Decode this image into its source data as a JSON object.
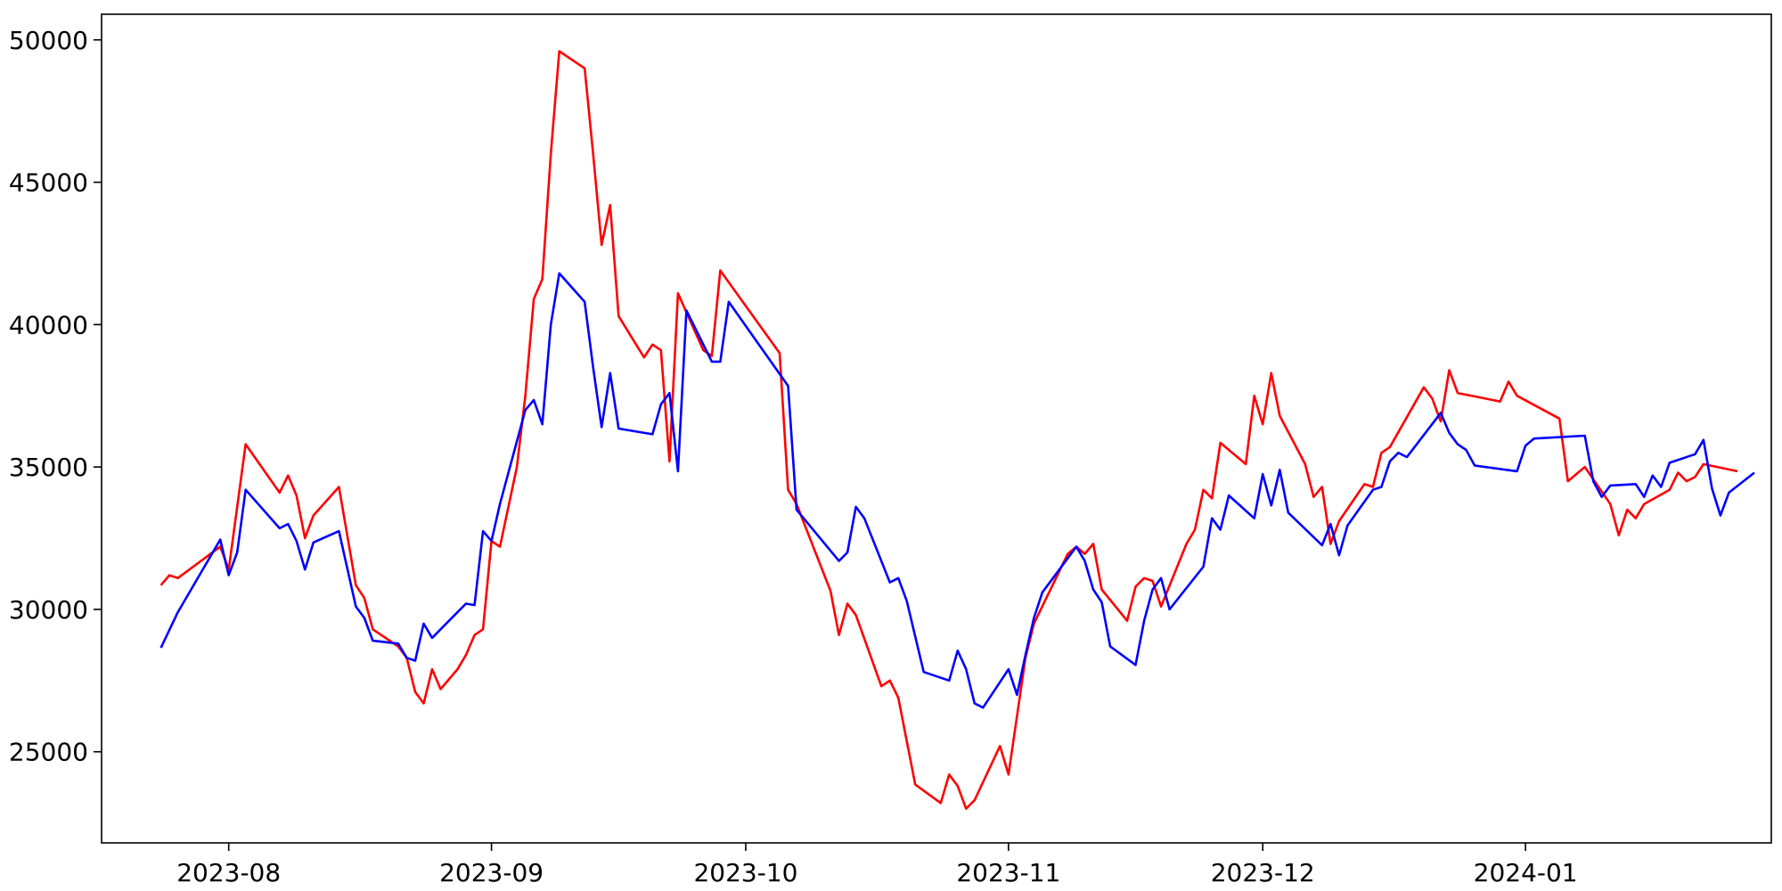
{
  "chart_data": {
    "type": "line",
    "title": "",
    "xlabel": "",
    "ylabel": "",
    "grid": false,
    "x_ticks": [
      "2023-08",
      "2023-09",
      "2023-10",
      "2023-11",
      "2023-12",
      "2024-01"
    ],
    "y_ticks": [
      25000,
      30000,
      35000,
      40000,
      45000,
      50000
    ],
    "xlim": [
      "2023-07-17",
      "2024-01-30"
    ],
    "ylim": [
      21800,
      50900
    ],
    "series": [
      {
        "color": "#ff0000",
        "points": [
          [
            "2023-07-24",
            30850
          ],
          [
            "2023-07-25",
            31200
          ],
          [
            "2023-07-26",
            31100
          ],
          [
            "2023-07-31",
            32200
          ],
          [
            "2023-08-01",
            31400
          ],
          [
            "2023-08-03",
            35800
          ],
          [
            "2023-08-07",
            34100
          ],
          [
            "2023-08-08",
            34700
          ],
          [
            "2023-08-09",
            34000
          ],
          [
            "2023-08-10",
            32500
          ],
          [
            "2023-08-11",
            33300
          ],
          [
            "2023-08-14",
            34300
          ],
          [
            "2023-08-16",
            30850
          ],
          [
            "2023-08-17",
            30400
          ],
          [
            "2023-08-18",
            29300
          ],
          [
            "2023-08-21",
            28700
          ],
          [
            "2023-08-22",
            28300
          ],
          [
            "2023-08-23",
            27100
          ],
          [
            "2023-08-24",
            26700
          ],
          [
            "2023-08-25",
            27900
          ],
          [
            "2023-08-26",
            27200
          ],
          [
            "2023-08-28",
            27900
          ],
          [
            "2023-08-29",
            28400
          ],
          [
            "2023-08-30",
            29100
          ],
          [
            "2023-08-31",
            29300
          ],
          [
            "2023-09-01",
            32400
          ],
          [
            "2023-09-02",
            32200
          ],
          [
            "2023-09-04",
            35000
          ],
          [
            "2023-09-05",
            37500
          ],
          [
            "2023-09-06",
            40900
          ],
          [
            "2023-09-07",
            41600
          ],
          [
            "2023-09-08",
            46000
          ],
          [
            "2023-09-09",
            49600
          ],
          [
            "2023-09-12",
            49000
          ],
          [
            "2023-09-13",
            46000
          ],
          [
            "2023-09-14",
            42800
          ],
          [
            "2023-09-15",
            44200
          ],
          [
            "2023-09-16",
            40300
          ],
          [
            "2023-09-19",
            38850
          ],
          [
            "2023-09-20",
            39300
          ],
          [
            "2023-09-21",
            39100
          ],
          [
            "2023-09-22",
            35200
          ],
          [
            "2023-09-23",
            41100
          ],
          [
            "2023-09-26",
            39100
          ],
          [
            "2023-09-27",
            38900
          ],
          [
            "2023-09-28",
            41900
          ],
          [
            "2023-10-05",
            39000
          ],
          [
            "2023-10-06",
            34200
          ],
          [
            "2023-10-07",
            33700
          ],
          [
            "2023-10-11",
            30650
          ],
          [
            "2023-10-12",
            29100
          ],
          [
            "2023-10-13",
            30200
          ],
          [
            "2023-10-14",
            29800
          ],
          [
            "2023-10-17",
            27300
          ],
          [
            "2023-10-18",
            27500
          ],
          [
            "2023-10-19",
            26900
          ],
          [
            "2023-10-21",
            23850
          ],
          [
            "2023-10-24",
            23200
          ],
          [
            "2023-10-25",
            24200
          ],
          [
            "2023-10-26",
            23800
          ],
          [
            "2023-10-27",
            23000
          ],
          [
            "2023-10-28",
            23300
          ],
          [
            "2023-10-31",
            25200
          ],
          [
            "2023-11-01",
            24200
          ],
          [
            "2023-11-03",
            28300
          ],
          [
            "2023-11-04",
            29500
          ],
          [
            "2023-11-08",
            31950
          ],
          [
            "2023-11-09",
            32200
          ],
          [
            "2023-11-10",
            31950
          ],
          [
            "2023-11-11",
            32300
          ],
          [
            "2023-11-12",
            30700
          ],
          [
            "2023-11-15",
            29600
          ],
          [
            "2023-11-16",
            30800
          ],
          [
            "2023-11-17",
            31100
          ],
          [
            "2023-11-18",
            31000
          ],
          [
            "2023-11-19",
            30100
          ],
          [
            "2023-11-22",
            32300
          ],
          [
            "2023-11-23",
            32800
          ],
          [
            "2023-11-24",
            34200
          ],
          [
            "2023-11-25",
            33900
          ],
          [
            "2023-11-26",
            35850
          ],
          [
            "2023-11-29",
            35100
          ],
          [
            "2023-11-30",
            37500
          ],
          [
            "2023-12-01",
            36500
          ],
          [
            "2023-12-02",
            38300
          ],
          [
            "2023-12-03",
            36800
          ],
          [
            "2023-12-06",
            35100
          ],
          [
            "2023-12-07",
            33950
          ],
          [
            "2023-12-08",
            34300
          ],
          [
            "2023-12-09",
            32300
          ],
          [
            "2023-12-10",
            33100
          ],
          [
            "2023-12-13",
            34400
          ],
          [
            "2023-12-14",
            34300
          ],
          [
            "2023-12-15",
            35500
          ],
          [
            "2023-12-16",
            35700
          ],
          [
            "2023-12-20",
            37800
          ],
          [
            "2023-12-21",
            37400
          ],
          [
            "2023-12-22",
            36600
          ],
          [
            "2023-12-23",
            38400
          ],
          [
            "2023-12-24",
            37600
          ],
          [
            "2023-12-29",
            37300
          ],
          [
            "2023-12-30",
            38000
          ],
          [
            "2023-12-31",
            37500
          ],
          [
            "2024-01-05",
            36700
          ],
          [
            "2024-01-06",
            34500
          ],
          [
            "2024-01-08",
            35000
          ],
          [
            "2024-01-11",
            33700
          ],
          [
            "2024-01-12",
            32600
          ],
          [
            "2024-01-13",
            33500
          ],
          [
            "2024-01-14",
            33200
          ],
          [
            "2024-01-15",
            33700
          ],
          [
            "2024-01-18",
            34200
          ],
          [
            "2024-01-19",
            34800
          ],
          [
            "2024-01-20",
            34500
          ],
          [
            "2024-01-21",
            34650
          ],
          [
            "2024-01-22",
            35100
          ],
          [
            "2024-01-26",
            34850
          ]
        ]
      },
      {
        "color": "#0000ff",
        "points": [
          [
            "2023-07-24",
            28650
          ],
          [
            "2023-07-26",
            29900
          ],
          [
            "2023-07-31",
            32450
          ],
          [
            "2023-08-01",
            31200
          ],
          [
            "2023-08-02",
            32000
          ],
          [
            "2023-08-03",
            34200
          ],
          [
            "2023-08-07",
            32850
          ],
          [
            "2023-08-08",
            33000
          ],
          [
            "2023-08-09",
            32400
          ],
          [
            "2023-08-10",
            31400
          ],
          [
            "2023-08-11",
            32350
          ],
          [
            "2023-08-14",
            32750
          ],
          [
            "2023-08-16",
            30100
          ],
          [
            "2023-08-17",
            29700
          ],
          [
            "2023-08-18",
            28900
          ],
          [
            "2023-08-21",
            28800
          ],
          [
            "2023-08-22",
            28300
          ],
          [
            "2023-08-23",
            28200
          ],
          [
            "2023-08-24",
            29500
          ],
          [
            "2023-08-25",
            29000
          ],
          [
            "2023-08-29",
            30200
          ],
          [
            "2023-08-30",
            30150
          ],
          [
            "2023-08-31",
            32750
          ],
          [
            "2023-09-01",
            32400
          ],
          [
            "2023-09-02",
            33700
          ],
          [
            "2023-09-05",
            37000
          ],
          [
            "2023-09-06",
            37350
          ],
          [
            "2023-09-07",
            36500
          ],
          [
            "2023-09-08",
            40000
          ],
          [
            "2023-09-09",
            41800
          ],
          [
            "2023-09-12",
            40800
          ],
          [
            "2023-09-13",
            38500
          ],
          [
            "2023-09-14",
            36400
          ],
          [
            "2023-09-15",
            38300
          ],
          [
            "2023-09-16",
            36350
          ],
          [
            "2023-09-20",
            36150
          ],
          [
            "2023-09-21",
            37200
          ],
          [
            "2023-09-22",
            37600
          ],
          [
            "2023-09-23",
            34850
          ],
          [
            "2023-09-24",
            40500
          ],
          [
            "2023-09-27",
            38700
          ],
          [
            "2023-09-28",
            38700
          ],
          [
            "2023-09-29",
            40800
          ],
          [
            "2023-10-06",
            37850
          ],
          [
            "2023-10-07",
            33500
          ],
          [
            "2023-10-12",
            31700
          ],
          [
            "2023-10-13",
            32000
          ],
          [
            "2023-10-14",
            33600
          ],
          [
            "2023-10-15",
            33200
          ],
          [
            "2023-10-18",
            30950
          ],
          [
            "2023-10-19",
            31100
          ],
          [
            "2023-10-20",
            30300
          ],
          [
            "2023-10-22",
            27800
          ],
          [
            "2023-10-25",
            27500
          ],
          [
            "2023-10-26",
            28550
          ],
          [
            "2023-10-27",
            27900
          ],
          [
            "2023-10-28",
            26700
          ],
          [
            "2023-10-29",
            26550
          ],
          [
            "2023-11-01",
            27900
          ],
          [
            "2023-11-02",
            27000
          ],
          [
            "2023-11-03",
            28400
          ],
          [
            "2023-11-04",
            29700
          ],
          [
            "2023-11-05",
            30600
          ],
          [
            "2023-11-09",
            32200
          ],
          [
            "2023-11-10",
            31700
          ],
          [
            "2023-11-11",
            30700
          ],
          [
            "2023-11-12",
            30250
          ],
          [
            "2023-11-13",
            28700
          ],
          [
            "2023-11-16",
            28050
          ],
          [
            "2023-11-17",
            29600
          ],
          [
            "2023-11-18",
            30700
          ],
          [
            "2023-11-19",
            31100
          ],
          [
            "2023-11-20",
            30000
          ],
          [
            "2023-11-24",
            31500
          ],
          [
            "2023-11-25",
            33200
          ],
          [
            "2023-11-26",
            32800
          ],
          [
            "2023-11-27",
            34000
          ],
          [
            "2023-11-30",
            33200
          ],
          [
            "2023-12-01",
            34750
          ],
          [
            "2023-12-02",
            33650
          ],
          [
            "2023-12-03",
            34900
          ],
          [
            "2023-12-04",
            33400
          ],
          [
            "2023-12-08",
            32250
          ],
          [
            "2023-12-09",
            33000
          ],
          [
            "2023-12-10",
            31900
          ],
          [
            "2023-12-11",
            32950
          ],
          [
            "2023-12-14",
            34200
          ],
          [
            "2023-12-15",
            34300
          ],
          [
            "2023-12-16",
            35200
          ],
          [
            "2023-12-17",
            35500
          ],
          [
            "2023-12-18",
            35350
          ],
          [
            "2023-12-22",
            36900
          ],
          [
            "2023-12-23",
            36200
          ],
          [
            "2023-12-24",
            35800
          ],
          [
            "2023-12-25",
            35600
          ],
          [
            "2023-12-26",
            35050
          ],
          [
            "2023-12-31",
            34850
          ],
          [
            "2024-01-01",
            35750
          ],
          [
            "2024-01-02",
            36000
          ],
          [
            "2024-01-08",
            36100
          ],
          [
            "2024-01-09",
            34500
          ],
          [
            "2024-01-10",
            33950
          ],
          [
            "2024-01-11",
            34350
          ],
          [
            "2024-01-14",
            34400
          ],
          [
            "2024-01-15",
            33950
          ],
          [
            "2024-01-16",
            34700
          ],
          [
            "2024-01-17",
            34300
          ],
          [
            "2024-01-18",
            35150
          ],
          [
            "2024-01-21",
            35450
          ],
          [
            "2024-01-22",
            35950
          ],
          [
            "2024-01-23",
            34250
          ],
          [
            "2024-01-24",
            33300
          ],
          [
            "2024-01-25",
            34100
          ],
          [
            "2024-01-28",
            34800
          ]
        ]
      }
    ]
  }
}
